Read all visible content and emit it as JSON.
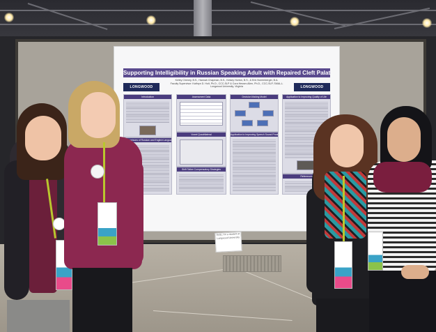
{
  "poster": {
    "title": "Supporting Intelligibility in Russian Speaking Adult with Repaired Cleft Palate",
    "authors_line1": "Kelley Cheney, B.S., Hannah Chapman, B.S., Kelsey Horton, B.S., & Erin Norrenberger, B.A.",
    "authors_line2": "Faculty Supervisor: Kathryn D. Holt, Ph.D., CCC-SLP & Cora Hesser-Allen, Ph.D., CCC-SLP, SMAL-L",
    "affiliation": "Longwood University, Virginia",
    "logo_left": "LONGWOOD",
    "logo_right": "LONGWOOD",
    "panels": {
      "introduction": "Introduction",
      "comparisons": "Comparisons of Russian and English Languages",
      "assessment": "Assessment Data",
      "vowel_quadrilateral": "Vowel Quadrilateral",
      "self_talk": "Shift Talker Compensatory Strategies",
      "decision_model": "Decision Making Model",
      "application_speech": "Application to Improving Speech Sound Production",
      "application_quality": "Application to Improving Quality of Life",
      "references": "References"
    }
  },
  "sign_note": "Hello, I'm a student at Longwood University",
  "colors": {
    "title_bar": "#5a4a8e",
    "panel_header": "#4a3c7e",
    "board": "#a8a39a",
    "floor": "#b7b0a4"
  }
}
